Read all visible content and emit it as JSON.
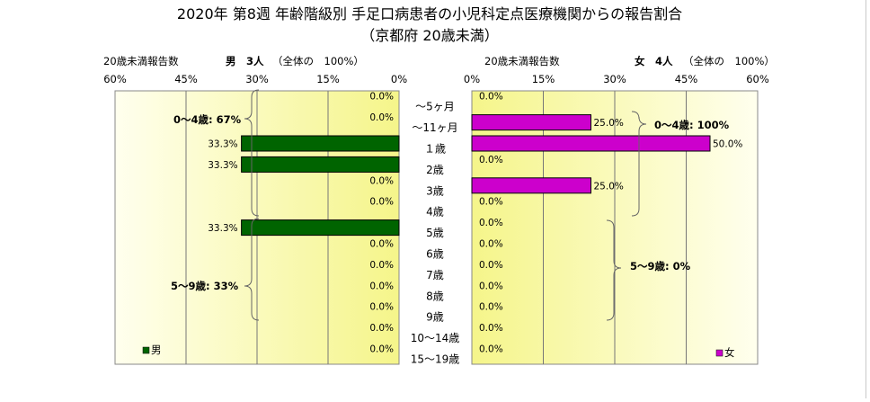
{
  "chart_data": {
    "type": "bar",
    "title": "2020年 第8週 年齢階級別 手足口病患者の小児科定点医療機関からの報告割合",
    "subtitle": "（京都府 20歳未満）",
    "categories": [
      "～5ヶ月",
      "～11ヶ月",
      "１歳",
      "2歳",
      "3歳",
      "4歳",
      "5歳",
      "6歳",
      "7歳",
      "8歳",
      "9歳",
      "10～14歳",
      "15～19歳"
    ],
    "xlim": [
      0,
      60
    ],
    "xticks": [
      "60%",
      "45%",
      "30%",
      "15%",
      "0%"
    ],
    "xticks_right": [
      "0%",
      "15%",
      "30%",
      "45%",
      "60%"
    ],
    "panels": [
      {
        "key": "male",
        "header_label": "20歳未満報告数",
        "header_count": "男　3人",
        "header_note": "（全体の　100%）",
        "series": [
          {
            "name": "男",
            "color": "#006400",
            "values": [
              0.0,
              0.0,
              33.3,
              33.3,
              0.0,
              0.0,
              33.3,
              0.0,
              0.0,
              0.0,
              0.0,
              0.0,
              0.0
            ]
          }
        ],
        "value_labels": [
          "0.0%",
          "0.0%",
          "33.3%",
          "33.3%",
          "0.0%",
          "0.0%",
          "33.3%",
          "0.0%",
          "0.0%",
          "0.0%",
          "0.0%",
          "0.0%",
          "0.0%"
        ],
        "annotations": [
          "0～4歳: 67%",
          "5～9歳: 33%"
        ]
      },
      {
        "key": "female",
        "header_label": "20歳未満報告数",
        "header_count": "女　4人",
        "header_note": "（全体の　100%）",
        "series": [
          {
            "name": "女",
            "color": "#cc00cc",
            "values": [
              0.0,
              25.0,
              50.0,
              0.0,
              25.0,
              0.0,
              0.0,
              0.0,
              0.0,
              0.0,
              0.0,
              0.0,
              0.0
            ]
          }
        ],
        "value_labels": [
          "0.0%",
          "25.0%",
          "50.0%",
          "0.0%",
          "25.0%",
          "0.0%",
          "0.0%",
          "0.0%",
          "0.0%",
          "0.0%",
          "0.0%",
          "0.0%",
          "0.0%"
        ],
        "annotations": [
          "0～4歳: 100%",
          "5～9歳: 0%"
        ]
      }
    ],
    "colors": {
      "plot_fill_light": "#ffffee",
      "plot_fill_dark": "#f7f78a",
      "grid": "#777777"
    },
    "legend": "bottom-left / bottom-right"
  }
}
